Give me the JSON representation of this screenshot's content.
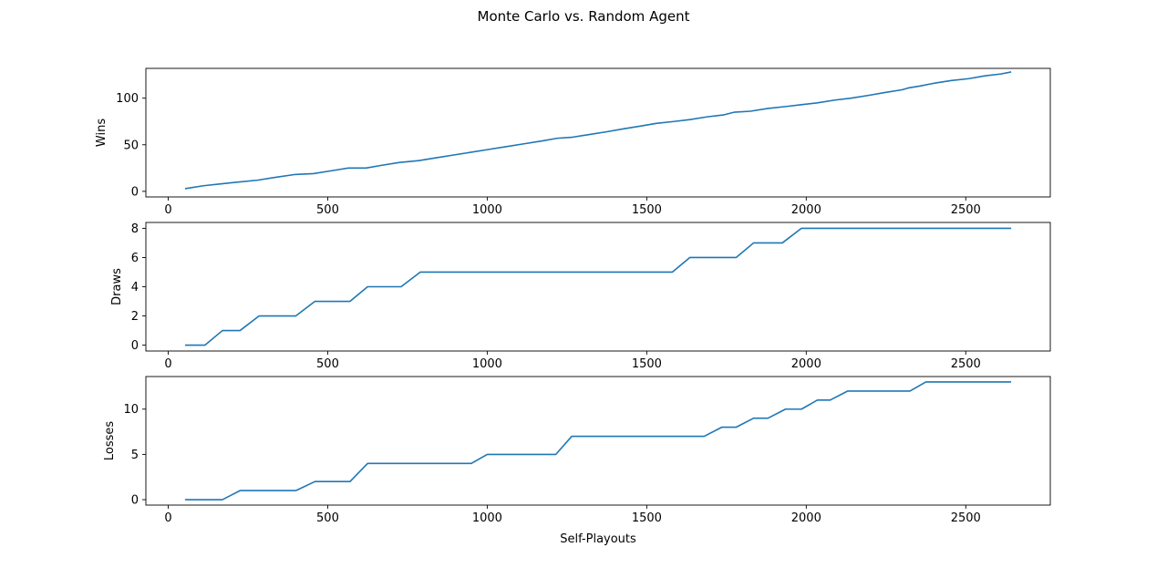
{
  "figure_title": "Monte Carlo vs. Random Agent",
  "line_color": "#1f77b4",
  "chart_data": [
    {
      "type": "line",
      "title": "",
      "xlabel": "",
      "ylabel": "Wins",
      "xlim": [
        -70,
        2765
      ],
      "ylim": [
        -6,
        132
      ],
      "xticks": [
        0,
        500,
        1000,
        1500,
        2000,
        2500
      ],
      "yticks": [
        0,
        50,
        100
      ],
      "grid": false,
      "x": [
        55,
        110,
        165,
        220,
        280,
        335,
        395,
        455,
        510,
        565,
        620,
        670,
        725,
        785,
        840,
        895,
        950,
        1005,
        1060,
        1115,
        1170,
        1220,
        1265,
        1320,
        1375,
        1425,
        1480,
        1530,
        1585,
        1635,
        1690,
        1740,
        1775,
        1825,
        1880,
        1935,
        1985,
        2035,
        2090,
        2140,
        2195,
        2245,
        2300,
        2320,
        2355,
        2400,
        2455,
        2510,
        2560,
        2610,
        2640
      ],
      "series": [
        {
          "values": [
            3,
            6,
            8,
            10,
            12,
            15,
            18,
            19,
            22,
            25,
            25,
            28,
            31,
            33,
            36,
            39,
            42,
            45,
            48,
            51,
            54,
            57,
            58,
            61,
            64,
            67,
            70,
            73,
            75,
            77,
            80,
            82,
            85,
            86,
            89,
            91,
            93,
            95,
            98,
            100,
            103,
            106,
            109,
            111,
            113,
            116,
            119,
            121,
            124,
            126,
            128
          ]
        }
      ]
    },
    {
      "type": "line",
      "title": "",
      "xlabel": "",
      "ylabel": "Draws",
      "xlim": [
        -70,
        2765
      ],
      "ylim": [
        -0.4,
        8.4
      ],
      "xticks": [
        0,
        500,
        1000,
        1500,
        2000,
        2500
      ],
      "yticks": [
        0,
        2,
        4,
        6,
        8
      ],
      "grid": false,
      "x": [
        55,
        115,
        170,
        225,
        285,
        400,
        460,
        570,
        625,
        730,
        790,
        1580,
        1635,
        1780,
        1835,
        1925,
        1985,
        2640
      ],
      "series": [
        {
          "values": [
            0,
            0,
            1,
            1,
            2,
            2,
            3,
            3,
            4,
            4,
            5,
            5,
            6,
            6,
            7,
            7,
            8,
            8
          ]
        }
      ]
    },
    {
      "type": "line",
      "title": "",
      "xlabel": "Self-Playouts",
      "ylabel": "Losses",
      "xlim": [
        -70,
        2765
      ],
      "ylim": [
        -0.6,
        13.6
      ],
      "xticks": [
        0,
        500,
        1000,
        1500,
        2000,
        2500
      ],
      "yticks": [
        0,
        5,
        10
      ],
      "grid": false,
      "x": [
        55,
        170,
        225,
        400,
        460,
        570,
        625,
        950,
        1000,
        1215,
        1265,
        1680,
        1735,
        1780,
        1835,
        1880,
        1935,
        1985,
        2035,
        2075,
        2130,
        2325,
        2375,
        2640
      ],
      "series": [
        {
          "values": [
            0,
            0,
            1,
            1,
            2,
            2,
            4,
            4,
            5,
            5,
            7,
            7,
            8,
            8,
            9,
            9,
            10,
            10,
            11,
            11,
            12,
            12,
            13,
            13
          ]
        }
      ]
    }
  ]
}
